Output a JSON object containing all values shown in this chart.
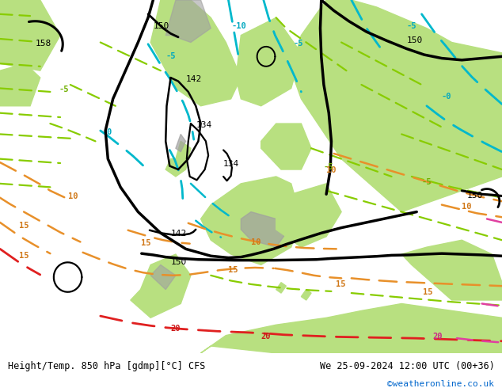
{
  "title_left": "Height/Temp. 850 hPa [gdmp][°C] CFS",
  "title_right": "We 25-09-2024 12:00 UTC (00+36)",
  "credit": "©weatheronline.co.uk",
  "bg_map_color": "#d8d8d8",
  "land_green": "#b8e080",
  "land_green2": "#c8e890",
  "land_gray": "#a8a8a8",
  "sea_color": "#d8d8d8",
  "bottom_bar_color": "#ffffff",
  "title_color": "#000000",
  "credit_color": "#0066cc",
  "figsize": [
    6.34,
    4.9
  ],
  "dpi": 100
}
